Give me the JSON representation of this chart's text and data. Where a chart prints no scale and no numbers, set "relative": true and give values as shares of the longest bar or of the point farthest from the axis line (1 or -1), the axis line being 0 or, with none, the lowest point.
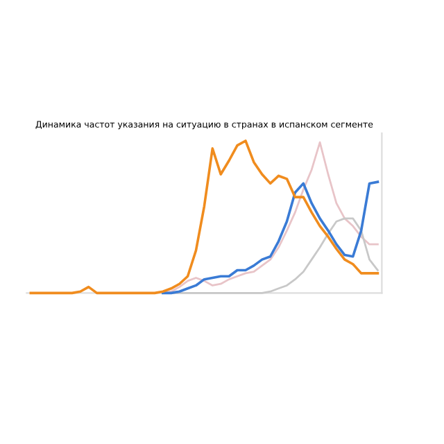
{
  "chart_data": {
    "type": "line",
    "title": "Динамика частот указания на ситуацию в странах в испанском сегменте",
    "relative": true,
    "categories": [
      null,
      null,
      null,
      null,
      null,
      null,
      null,
      null,
      null,
      null,
      null,
      null,
      null,
      null,
      null,
      null,
      null,
      null,
      null,
      null,
      null,
      null,
      null,
      null,
      null,
      null,
      null,
      null,
      null,
      null,
      null,
      null,
      null,
      null,
      null,
      null,
      null,
      null,
      null,
      null,
      null,
      null,
      null
    ],
    "series": [
      {
        "color": "#e8c4c8",
        "values": [
          null,
          null,
          null,
          null,
          null,
          null,
          null,
          null,
          null,
          null,
          null,
          null,
          null,
          null,
          null,
          null,
          0,
          0.01,
          0.04,
          0.08,
          0.1,
          0.08,
          0.05,
          0.06,
          0.09,
          0.11,
          0.13,
          0.14,
          0.18,
          0.22,
          0.3,
          0.41,
          0.53,
          0.68,
          0.81,
          0.99,
          0.78,
          0.59,
          0.49,
          0.44,
          0.37,
          0.32,
          0.32
        ]
      },
      {
        "color": "#c8c8c8",
        "values": [
          null,
          null,
          null,
          null,
          null,
          null,
          null,
          null,
          null,
          null,
          null,
          null,
          null,
          null,
          null,
          null,
          0,
          0,
          0,
          0,
          0,
          0,
          0,
          0,
          0,
          0,
          0,
          0,
          0,
          0.01,
          0.03,
          0.05,
          0.09,
          0.14,
          0.22,
          0.3,
          0.39,
          0.47,
          0.49,
          0.49,
          0.41,
          0.22,
          0.15
        ]
      },
      {
        "color": "#3a7bd5",
        "values": [
          null,
          null,
          null,
          null,
          null,
          null,
          null,
          null,
          null,
          null,
          null,
          null,
          null,
          null,
          null,
          null,
          0,
          0,
          0.01,
          0.03,
          0.05,
          0.09,
          0.1,
          0.11,
          0.11,
          0.15,
          0.15,
          0.18,
          0.22,
          0.24,
          0.34,
          0.47,
          0.66,
          0.72,
          0.59,
          0.49,
          0.41,
          0.32,
          0.25,
          0.24,
          0.41,
          0.72,
          0.73
        ]
      },
      {
        "color": "#f08c1e",
        "values": [
          0,
          0,
          0,
          0,
          0,
          0,
          0.01,
          0.04,
          0,
          0,
          0,
          0,
          0,
          0,
          0,
          0,
          0.01,
          0.03,
          0.06,
          0.11,
          0.28,
          0.57,
          0.95,
          0.78,
          0.87,
          0.97,
          1,
          0.86,
          0.78,
          0.72,
          0.77,
          0.75,
          0.63,
          0.63,
          0.53,
          0.44,
          0.37,
          0.29,
          0.22,
          0.19,
          0.13,
          0.13,
          0.13
        ]
      }
    ]
  }
}
